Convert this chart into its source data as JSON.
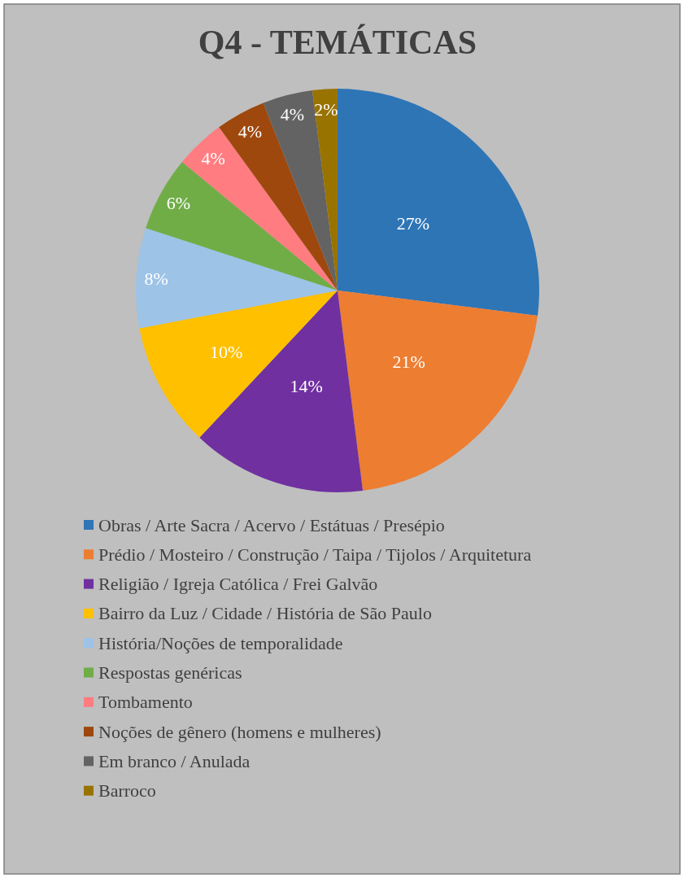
{
  "chart_data": {
    "type": "pie",
    "title": "Q4 - TEMÁTICAS",
    "categories": [
      "Obras / Arte Sacra / Acervo / Estátuas / Presépio",
      "Prédio / Mosteiro / Construção / Taipa / Tijolos / Arquitetura",
      "Religião / Igreja Católica / Frei Galvão",
      "Bairro da Luz / Cidade / História de São Paulo",
      "História/Noções de temporalidade",
      "Respostas genéricas",
      "Tombamento",
      "Noções de gênero (homens e mulheres)",
      "Em branco / Anulada",
      "Barroco"
    ],
    "values": [
      27,
      21,
      14,
      10,
      8,
      6,
      4,
      4,
      4,
      2
    ],
    "value_labels": [
      "27%",
      "21%",
      "14%",
      "10%",
      "8%",
      "6%",
      "4%",
      "4%",
      "4%",
      "2%"
    ],
    "colors": [
      "#2e75b6",
      "#ed7d31",
      "#7030a0",
      "#ffc000",
      "#9dc3e6",
      "#70ad47",
      "#ff7c80",
      "#9e480e",
      "#636363",
      "#997300"
    ],
    "legend": "bottom"
  }
}
